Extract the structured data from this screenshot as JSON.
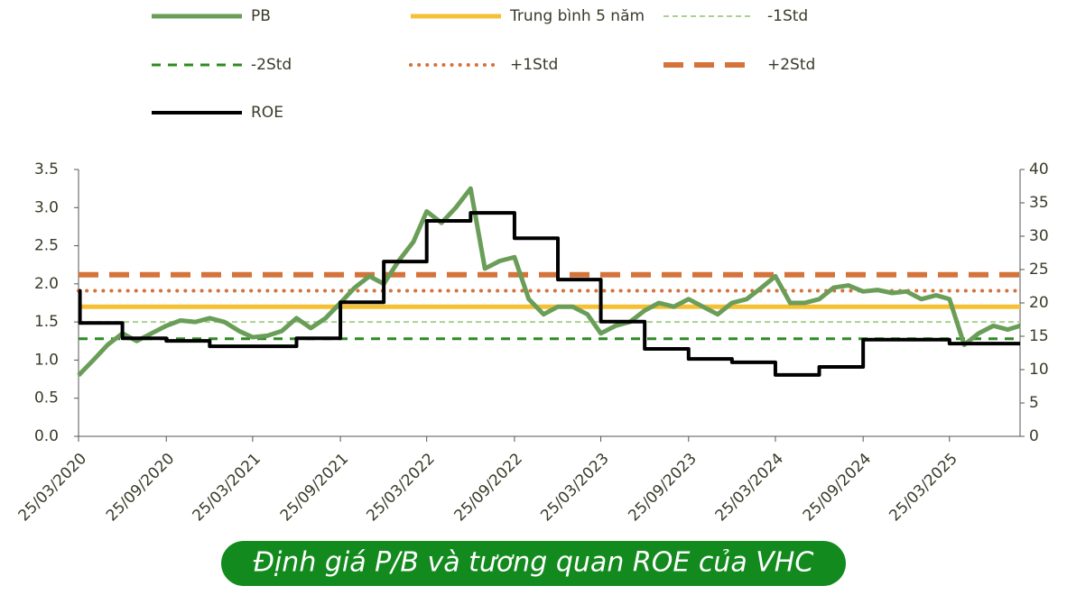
{
  "chart_data": {
    "type": "line",
    "title": "Định giá P/B và tương quan ROE của VHC",
    "xlim": [
      "2020-03-25",
      "2025-08-20"
    ],
    "xticks": [
      {
        "value": "2020-03-25",
        "label": "25/03/2020"
      },
      {
        "value": "2020-09-25",
        "label": "25/09/2020"
      },
      {
        "value": "2021-03-25",
        "label": "25/03/2021"
      },
      {
        "value": "2021-09-25",
        "label": "25/09/2021"
      },
      {
        "value": "2022-03-25",
        "label": "25/03/2022"
      },
      {
        "value": "2022-09-25",
        "label": "25/09/2022"
      },
      {
        "value": "2023-03-25",
        "label": "25/03/2023"
      },
      {
        "value": "2023-09-25",
        "label": "25/09/2023"
      },
      {
        "value": "2024-03-25",
        "label": "25/03/2024"
      },
      {
        "value": "2024-09-25",
        "label": "25/09/2024"
      },
      {
        "value": "2025-03-25",
        "label": "25/03/2025"
      }
    ],
    "ylim": [
      0,
      3.5
    ],
    "yticks": [
      {
        "value": 0,
        "label": "0.0"
      },
      0.5,
      {
        "value": 1,
        "label": "1.0"
      },
      1.5,
      {
        "value": 2,
        "label": "2.0"
      },
      2.5,
      {
        "value": 3,
        "label": "3.0"
      },
      3.5
    ],
    "y2lim": [
      0,
      40
    ],
    "y2ticks": [
      0,
      5,
      10,
      15,
      20,
      25,
      30,
      35,
      40
    ],
    "series": [
      {
        "name": "PB",
        "color": "#6a9e58",
        "style": "solid",
        "x": [
          "2020-03-25",
          "2020-04-25",
          "2020-05-25",
          "2020-06-25",
          "2020-07-25",
          "2020-08-25",
          "2020-09-25",
          "2020-10-25",
          "2020-11-25",
          "2020-12-25",
          "2021-01-25",
          "2021-02-25",
          "2021-03-25",
          "2021-04-25",
          "2021-05-25",
          "2021-06-25",
          "2021-07-25",
          "2021-08-25",
          "2021-09-25",
          "2021-10-25",
          "2021-11-25",
          "2021-12-25",
          "2022-01-25",
          "2022-02-25",
          "2022-03-25",
          "2022-04-25",
          "2022-05-25",
          "2022-06-25",
          "2022-07-25",
          "2022-08-25",
          "2022-09-25",
          "2022-10-25",
          "2022-11-25",
          "2022-12-25",
          "2023-01-25",
          "2023-02-25",
          "2023-03-25",
          "2023-04-25",
          "2023-05-25",
          "2023-06-25",
          "2023-07-25",
          "2023-08-25",
          "2023-09-25",
          "2023-10-25",
          "2023-11-25",
          "2023-12-25",
          "2024-01-25",
          "2024-02-25",
          "2024-03-25",
          "2024-04-25",
          "2024-05-25",
          "2024-06-25",
          "2024-07-25",
          "2024-08-25",
          "2024-09-25",
          "2024-10-25",
          "2024-11-25",
          "2024-12-25",
          "2025-01-25",
          "2025-02-25",
          "2025-03-25",
          "2025-04-25",
          "2025-05-25",
          "2025-06-25",
          "2025-07-25",
          "2025-08-20"
        ],
        "values": [
          0.8,
          1.0,
          1.2,
          1.35,
          1.25,
          1.35,
          1.45,
          1.52,
          1.5,
          1.55,
          1.5,
          1.38,
          1.3,
          1.32,
          1.38,
          1.55,
          1.42,
          1.55,
          1.75,
          1.95,
          2.1,
          2.0,
          2.3,
          2.55,
          2.95,
          2.8,
          3.0,
          3.25,
          2.2,
          2.3,
          2.35,
          1.8,
          1.6,
          1.7,
          1.7,
          1.6,
          1.35,
          1.45,
          1.5,
          1.65,
          1.75,
          1.7,
          1.8,
          1.7,
          1.6,
          1.75,
          1.8,
          1.95,
          2.1,
          1.75,
          1.75,
          1.8,
          1.95,
          1.98,
          1.9,
          1.92,
          1.88,
          1.9,
          1.8,
          1.85,
          1.8,
          1.2,
          1.35,
          1.45,
          1.4,
          1.45
        ]
      },
      {
        "name": "Trung bình 5 năm",
        "color": "#f5c033",
        "style": "solid",
        "level": 1.7
      },
      {
        "name": "-1Std",
        "color": "#a9d18e",
        "style": "thin-dashed",
        "level": 1.5
      },
      {
        "name": "-2Std",
        "color": "#2e8b22",
        "style": "dashed",
        "level": 1.28
      },
      {
        "name": "+1Std",
        "color": "#d4733a",
        "style": "dotted",
        "level": 1.91
      },
      {
        "name": "+2Std",
        "color": "#d4733a",
        "style": "wide-dashed",
        "level": 2.12
      },
      {
        "name": "ROE",
        "color": "#000000",
        "style": "step",
        "axis": "y2",
        "x": [
          "2020-03-25",
          "2020-03-28",
          "2020-06-25",
          "2020-09-25",
          "2020-12-25",
          "2021-06-25",
          "2021-09-25",
          "2021-12-25",
          "2022-03-25",
          "2022-06-25",
          "2022-09-25",
          "2022-12-25",
          "2023-03-25",
          "2023-06-25",
          "2023-09-25",
          "2023-12-25",
          "2024-03-25",
          "2024-06-25",
          "2024-09-25",
          "2025-03-25",
          "2025-08-20"
        ],
        "values": [
          21.8,
          17.0,
          14.7,
          14.3,
          13.5,
          14.7,
          20.1,
          26.2,
          32.3,
          33.5,
          29.7,
          23.5,
          17.2,
          13.1,
          11.6,
          11.1,
          9.2,
          10.4,
          14.5,
          13.9,
          13.9
        ]
      }
    ]
  }
}
